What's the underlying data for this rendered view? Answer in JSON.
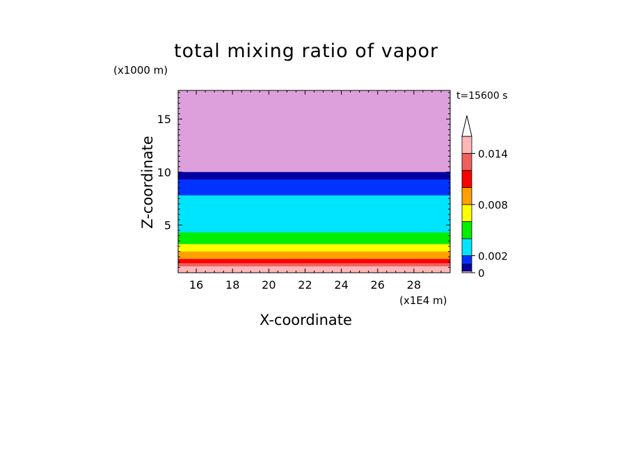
{
  "chart_data": {
    "type": "heatmap",
    "title": "total mixing ratio of vapor",
    "xlabel": "X-coordinate",
    "ylabel": "Z-coordinate",
    "x_unit": "(x1E4 m)",
    "y_unit": "(x1000 m)",
    "time_label": "t=15600 s",
    "xlim": [
      15,
      30
    ],
    "ylim": [
      0.5,
      17.7
    ],
    "x_ticks": [
      "16",
      "18",
      "20",
      "22",
      "24",
      "26",
      "28"
    ],
    "y_ticks": [
      "5",
      "10",
      "15"
    ],
    "colorbar": {
      "tick_labels": [
        "0",
        "0.002",
        "0.008",
        "0.014"
      ],
      "tick_values": [
        0,
        0.002,
        0.008,
        0.014
      ],
      "levels": [
        0,
        0.0002,
        0.001,
        0.002,
        0.004,
        0.006,
        0.008,
        0.01,
        0.012,
        0.014,
        0.016
      ],
      "colors": [
        "#dda0dd",
        "#0000a0",
        "#0033ff",
        "#00e5ff",
        "#00ee00",
        "#ffff00",
        "#ffa000",
        "#ff0000",
        "#ee6060",
        "#ffb6b6"
      ],
      "extend": "max"
    },
    "bands": [
      {
        "level_range": "0.014-0.016",
        "color": "#ffb6b6",
        "bottom_z": 0.5,
        "top_z": 1.1
      },
      {
        "level_range": "0.012-0.014",
        "color": "#ee6060",
        "bottom_z": 1.1,
        "top_z": 1.4
      },
      {
        "level_range": "0.010-0.012",
        "color": "#ff0000",
        "bottom_z": 1.4,
        "top_z": 1.8
      },
      {
        "level_range": "0.008-0.010",
        "color": "#ffa000",
        "bottom_z": 1.8,
        "top_z": 2.5
      },
      {
        "level_range": "0.006-0.008",
        "color": "#ffff00",
        "bottom_z": 2.5,
        "top_z": 3.2
      },
      {
        "level_range": "0.004-0.006",
        "color": "#00ee00",
        "bottom_z": 3.2,
        "top_z": 4.3
      },
      {
        "level_range": "0.002-0.004",
        "color": "#00e5ff",
        "bottom_z": 4.3,
        "top_z": 7.8
      },
      {
        "level_range": "0.001-0.002",
        "color": "#0033ff",
        "bottom_z": 7.8,
        "top_z": 9.3
      },
      {
        "level_range": "0.0002-0.001",
        "color": "#0000a0",
        "bottom_z": 9.3,
        "top_z": 10.0
      },
      {
        "level_range": "0-0.0002",
        "color": "#dda0dd",
        "bottom_z": 10.0,
        "top_z": 17.7
      }
    ]
  }
}
